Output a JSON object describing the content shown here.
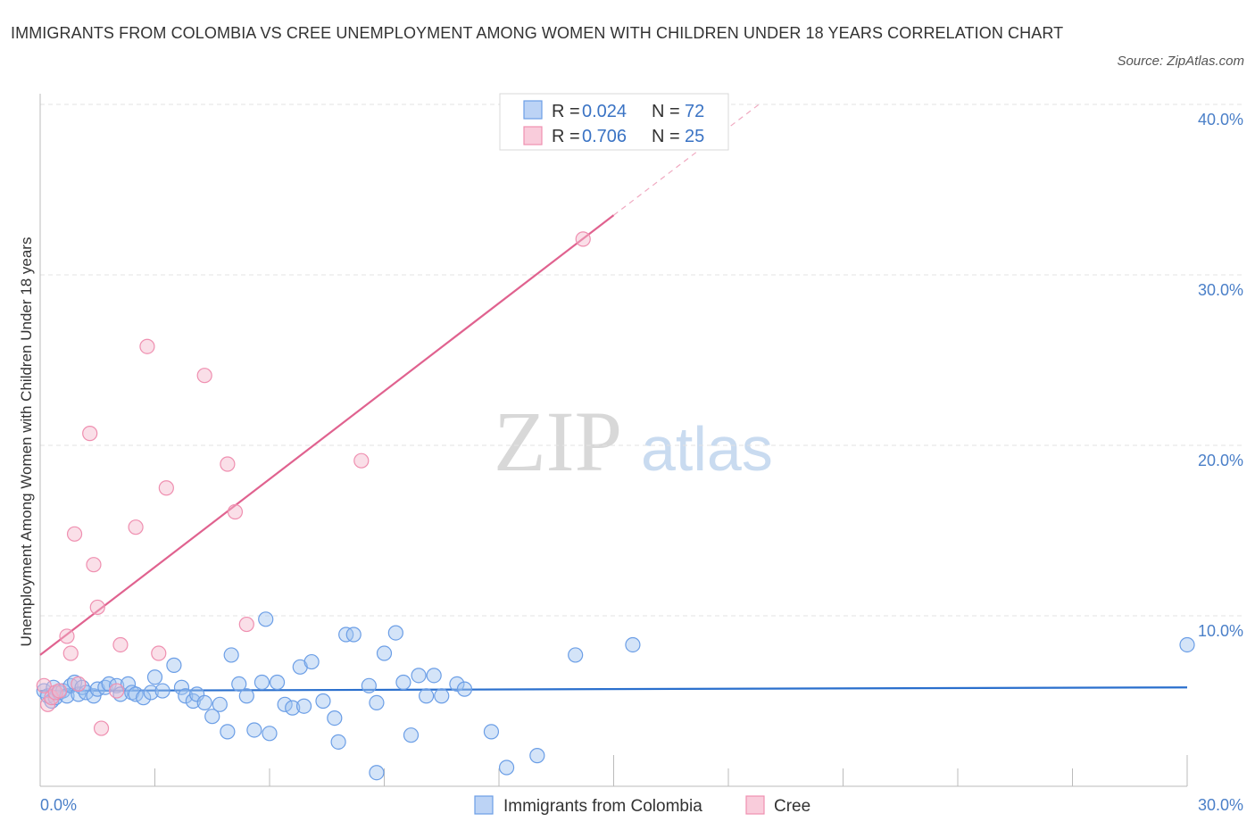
{
  "header": {
    "title": "IMMIGRANTS FROM COLOMBIA VS CREE UNEMPLOYMENT AMONG WOMEN WITH CHILDREN UNDER 18 YEARS CORRELATION CHART",
    "source": "Source: ZipAtlas.com"
  },
  "watermark": {
    "zip": "ZIP",
    "atlas": "atlas"
  },
  "legend": {
    "rows": [
      {
        "r_label": "R =",
        "r_value": "0.024",
        "n_label": "N =",
        "n_value": "72"
      },
      {
        "r_label": "R =",
        "r_value": "0.706",
        "n_label": "N =",
        "n_value": "25"
      }
    ]
  },
  "chart_data": {
    "type": "scatter",
    "title": "IMMIGRANTS FROM COLOMBIA VS CREE UNEMPLOYMENT AMONG WOMEN WITH CHILDREN UNDER 18 YEARS CORRELATION CHART",
    "xlabel": "",
    "ylabel": "Unemployment Among Women with Children Under 18 years",
    "xlim": [
      0,
      30
    ],
    "ylim": [
      0,
      40
    ],
    "x_tick_labels": [
      "0.0%",
      "30.0%"
    ],
    "y_ticks": [
      10,
      20,
      30,
      40
    ],
    "y_tick_labels": [
      "10.0%",
      "20.0%",
      "30.0%",
      "40.0%"
    ],
    "grid": true,
    "legend_position": "top-center",
    "colors": {
      "colombia": "#6b9ee6",
      "colombia_line": "#2a6fcd",
      "cree": "#ef8fb0",
      "cree_line": "#e0628f"
    },
    "series": [
      {
        "name": "Immigrants from Colombia",
        "r": 0.024,
        "n": 72,
        "trend": {
          "x": [
            0,
            30
          ],
          "y": [
            5.6,
            5.8
          ]
        },
        "points": [
          [
            0.1,
            5.6
          ],
          [
            0.2,
            5.3
          ],
          [
            0.3,
            5.0
          ],
          [
            0.35,
            5.8
          ],
          [
            0.4,
            5.2
          ],
          [
            0.5,
            5.5
          ],
          [
            0.6,
            5.6
          ],
          [
            0.7,
            5.3
          ],
          [
            0.8,
            5.9
          ],
          [
            0.9,
            6.1
          ],
          [
            1.0,
            5.4
          ],
          [
            1.1,
            5.8
          ],
          [
            1.2,
            5.5
          ],
          [
            1.4,
            5.3
          ],
          [
            1.5,
            5.7
          ],
          [
            1.7,
            5.8
          ],
          [
            1.8,
            6.0
          ],
          [
            2.0,
            5.9
          ],
          [
            2.1,
            5.4
          ],
          [
            2.3,
            6.0
          ],
          [
            2.4,
            5.5
          ],
          [
            2.5,
            5.4
          ],
          [
            2.7,
            5.2
          ],
          [
            2.9,
            5.5
          ],
          [
            3.0,
            6.4
          ],
          [
            3.2,
            5.6
          ],
          [
            3.5,
            7.1
          ],
          [
            3.7,
            5.8
          ],
          [
            3.8,
            5.3
          ],
          [
            4.0,
            5.0
          ],
          [
            4.1,
            5.4
          ],
          [
            4.3,
            4.9
          ],
          [
            4.5,
            4.1
          ],
          [
            4.7,
            4.8
          ],
          [
            4.9,
            3.2
          ],
          [
            5.0,
            7.7
          ],
          [
            5.2,
            6.0
          ],
          [
            5.4,
            5.3
          ],
          [
            5.6,
            3.3
          ],
          [
            5.8,
            6.1
          ],
          [
            5.9,
            9.8
          ],
          [
            6.0,
            3.1
          ],
          [
            6.2,
            6.1
          ],
          [
            6.4,
            4.8
          ],
          [
            6.6,
            4.6
          ],
          [
            6.8,
            7.0
          ],
          [
            6.9,
            4.7
          ],
          [
            7.1,
            7.3
          ],
          [
            7.4,
            5.0
          ],
          [
            7.7,
            4.0
          ],
          [
            7.8,
            2.6
          ],
          [
            8.0,
            8.9
          ],
          [
            8.2,
            8.9
          ],
          [
            8.6,
            5.9
          ],
          [
            8.8,
            4.9
          ],
          [
            9.0,
            7.8
          ],
          [
            9.3,
            9.0
          ],
          [
            9.5,
            6.1
          ],
          [
            9.7,
            3.0
          ],
          [
            9.9,
            6.5
          ],
          [
            10.1,
            5.3
          ],
          [
            10.3,
            6.5
          ],
          [
            10.5,
            5.3
          ],
          [
            10.9,
            6.0
          ],
          [
            11.1,
            5.7
          ],
          [
            11.8,
            3.2
          ],
          [
            12.2,
            1.1
          ],
          [
            13.0,
            1.8
          ],
          [
            14.0,
            7.7
          ],
          [
            15.5,
            8.3
          ],
          [
            8.8,
            0.8
          ],
          [
            30.0,
            8.3
          ]
        ]
      },
      {
        "name": "Cree",
        "r": 0.706,
        "n": 25,
        "trend": {
          "x": [
            0,
            15
          ],
          "y": [
            7.7,
            33.5
          ]
        },
        "trend_dashed": {
          "x": [
            15,
            18.8
          ],
          "y": [
            33.5,
            40
          ]
        },
        "points": [
          [
            0.1,
            5.9
          ],
          [
            0.2,
            4.8
          ],
          [
            0.3,
            5.2
          ],
          [
            0.4,
            5.5
          ],
          [
            0.5,
            5.6
          ],
          [
            0.7,
            8.8
          ],
          [
            0.8,
            7.8
          ],
          [
            0.9,
            14.8
          ],
          [
            1.0,
            6.0
          ],
          [
            1.3,
            20.7
          ],
          [
            1.4,
            13.0
          ],
          [
            1.5,
            10.5
          ],
          [
            1.6,
            3.4
          ],
          [
            2.0,
            5.6
          ],
          [
            2.1,
            8.3
          ],
          [
            2.5,
            15.2
          ],
          [
            2.8,
            25.8
          ],
          [
            3.1,
            7.8
          ],
          [
            3.3,
            17.5
          ],
          [
            4.3,
            24.1
          ],
          [
            4.9,
            18.9
          ],
          [
            5.1,
            16.1
          ],
          [
            5.4,
            9.5
          ],
          [
            8.4,
            19.1
          ],
          [
            14.2,
            32.1
          ]
        ]
      }
    ]
  },
  "bottom_legend": {
    "items": [
      {
        "label": "Immigrants from Colombia"
      },
      {
        "label": "Cree"
      }
    ]
  }
}
